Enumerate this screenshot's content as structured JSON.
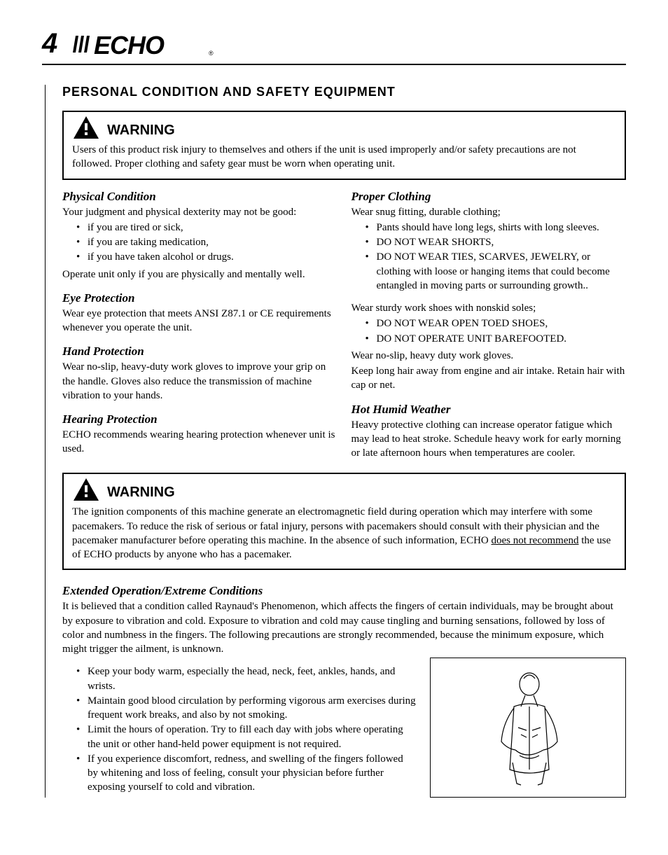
{
  "page_number": "4",
  "brand": "ECHO",
  "section_title": "PERSONAL CONDITION AND SAFETY EQUIPMENT",
  "warning1": {
    "label": "WARNING",
    "text": "Users of this product risk injury to themselves and others if the unit is used improperly and/or safety precautions are not followed.  Proper clothing and safety gear must be worn when operating unit."
  },
  "left": {
    "physical": {
      "heading": "Physical Condition",
      "intro": "Your judgment and physical dexterity may not be good:",
      "bullets": [
        "if you are tired or sick,",
        "if you are taking medication,",
        "if you have taken alcohol or drugs."
      ],
      "outro": "Operate unit only if you are physically and mentally well."
    },
    "eye": {
      "heading": "Eye Protection",
      "text": "Wear eye protection that meets ANSI Z87.1 or CE requirements whenever you operate the unit."
    },
    "hand": {
      "heading": "Hand Protection",
      "text": "Wear no-slip, heavy-duty work gloves to improve your grip on the handle.  Gloves also reduce the transmission of machine vibration to your hands."
    },
    "hearing": {
      "heading": "Hearing Protection",
      "text": "ECHO recommends wearing hearing protection whenever unit is used."
    }
  },
  "right": {
    "clothing": {
      "heading": "Proper Clothing",
      "intro": "Wear snug fitting, durable clothing;",
      "bullets1": [
        "Pants should have long legs, shirts with long sleeves.",
        "DO NOT WEAR SHORTS,",
        "DO NOT WEAR TIES, SCARVES, JEWELRY, or clothing with loose or hanging items that could become entangled in moving parts or surrounding growth.."
      ],
      "mid": "Wear sturdy work shoes with nonskid soles;",
      "bullets2": [
        "DO NOT WEAR OPEN TOED SHOES,",
        "DO NOT OPERATE UNIT BAREFOOTED."
      ],
      "outro1": "Wear no-slip, heavy duty work gloves.",
      "outro2": "Keep long hair away from engine and air intake. Retain hair with cap or net."
    },
    "hot": {
      "heading": "Hot Humid Weather",
      "text": "Heavy protective clothing can increase operator fatigue which may lead to heat stroke. Schedule heavy work for early morning or late afternoon hours when temperatures are cooler."
    }
  },
  "warning2": {
    "label": "WARNING",
    "text_pre": "The ignition components of this machine generate an electromagnetic field during operation which may interfere with some pacemakers.  To reduce the risk of serious or fatal injury, persons with pacemakers should consult with their physician and the pacemaker manufacturer before operating this machine.   In the absence of such information, ECHO ",
    "text_under": "does not recommend",
    "text_post": " the use of ECHO products by anyone who has a pacemaker."
  },
  "extended": {
    "heading": "Extended Operation/Extreme Conditions",
    "intro": "It is believed that a condition called Raynaud's Phenomenon, which affects the fingers of certain individuals, may be brought about by exposure to vibration and cold. Exposure to vibration and cold may cause tingling and burning sensations, followed by loss of color and numbness in the fingers. The following precautions are strongly recommended, because the minimum exposure, which might trigger the ailment, is unknown.",
    "bullets": [
      "Keep your body warm, especially the head, neck, feet, ankles, hands, and wrists.",
      "Maintain good blood circulation by performing vigorous arm exercises during frequent work breaks, and also by not smoking.",
      "Limit the hours of operation. Try to fill each day with jobs where operating the unit or other hand-held power equipment is not required.",
      "If you experience discomfort, redness, and swelling of the fingers followed by whitening and loss of feeling, consult your physician before further exposing yourself to cold and vibration."
    ]
  },
  "colors": {
    "text": "#000000",
    "background": "#ffffff",
    "border": "#000000"
  }
}
